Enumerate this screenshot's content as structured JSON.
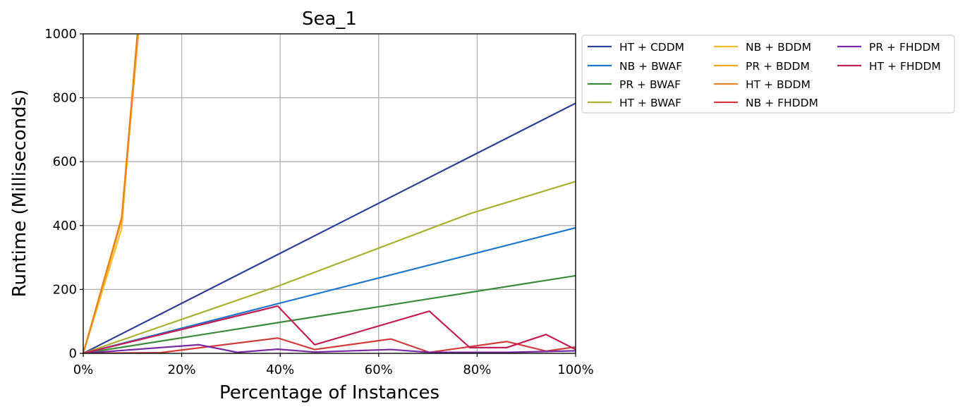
{
  "chart_data": {
    "type": "line",
    "title": "Sea_1",
    "xlabel": "Percentage of Instances",
    "ylabel": "Runtime (Milliseconds)",
    "xlim": [
      0,
      100
    ],
    "ylim": [
      0,
      1000
    ],
    "x_tick_values": [
      0,
      20,
      40,
      60,
      80,
      100
    ],
    "x_tick_labels": [
      "0%",
      "20%",
      "40%",
      "60%",
      "80%",
      "100%"
    ],
    "y_tick_values": [
      0,
      200,
      400,
      600,
      800,
      1000
    ],
    "y_tick_labels": [
      "0",
      "200",
      "400",
      "600",
      "800",
      "1000"
    ],
    "grid": true,
    "legend_position": "outside-right-top",
    "legend_columns": 3,
    "series": [
      {
        "name": "HT + CDDM",
        "color": "#2e3f96",
        "x": [
          0,
          100
        ],
        "y": [
          0,
          783
        ]
      },
      {
        "name": "NB + BWAF",
        "color": "#1f77cc",
        "x": [
          0,
          100
        ],
        "y": [
          0,
          393
        ]
      },
      {
        "name": "PR + BWAF",
        "color": "#3a8a3a",
        "x": [
          0,
          100
        ],
        "y": [
          0,
          243
        ]
      },
      {
        "name": "HT + BWAF",
        "color": "#aab030",
        "x": [
          0,
          39.5,
          78.5,
          100
        ],
        "y": [
          0,
          210,
          437,
          538
        ]
      },
      {
        "name": "NB + BDDM",
        "color": "#f2c12e",
        "x": [
          0,
          7.8,
          11
        ],
        "y": [
          0,
          390,
          1000
        ]
      },
      {
        "name": "PR + BDDM",
        "color": "#f5a623",
        "x": [
          0,
          7.8,
          11.2
        ],
        "y": [
          0,
          415,
          1000
        ]
      },
      {
        "name": "HT + BDDM",
        "color": "#e8821a",
        "x": [
          0,
          7.8,
          11
        ],
        "y": [
          0,
          425,
          1000
        ]
      },
      {
        "name": "NB + FHDDM",
        "color": "#d13b3b",
        "x": [
          0,
          15.6,
          39.5,
          47,
          62.5,
          70.3,
          86,
          94,
          100
        ],
        "y": [
          0,
          2,
          48,
          12,
          45,
          3,
          37,
          7,
          20
        ]
      },
      {
        "name": "PR + FHDDM",
        "color": "#7a2aa0",
        "x": [
          0,
          23.5,
          31.3,
          39.5,
          47,
          62.5,
          70.3,
          86,
          100
        ],
        "y": [
          0,
          27,
          3,
          13,
          4,
          12,
          3,
          3,
          8
        ]
      },
      {
        "name": "HT + FHDDM",
        "color": "#c21e56",
        "x": [
          0,
          39.5,
          47,
          70.3,
          78.5,
          86,
          94,
          100
        ],
        "y": [
          0,
          148,
          27,
          132,
          18,
          18,
          59,
          12
        ]
      }
    ]
  }
}
